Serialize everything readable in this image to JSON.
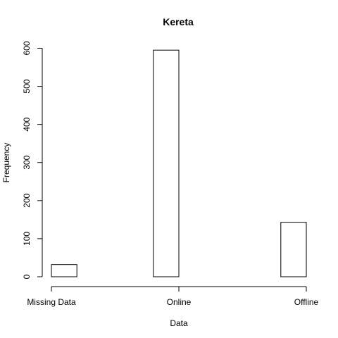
{
  "chart_data": {
    "type": "bar",
    "title": "Kereta",
    "xlabel": "Data",
    "ylabel": "Frequency",
    "categories": [
      "Missing Data",
      "Online",
      "Offline"
    ],
    "bins": [
      {
        "x_start": 0.0,
        "x_end": 0.2,
        "value": 32
      },
      {
        "x_start": 0.2,
        "x_end": 0.4,
        "value": 0
      },
      {
        "x_start": 0.4,
        "x_end": 0.6,
        "value": 0
      },
      {
        "x_start": 0.6,
        "x_end": 0.8,
        "value": 0
      },
      {
        "x_start": 0.8,
        "x_end": 1.0,
        "value": 595
      },
      {
        "x_start": 1.0,
        "x_end": 1.2,
        "value": 0
      },
      {
        "x_start": 1.2,
        "x_end": 1.4,
        "value": 0
      },
      {
        "x_start": 1.4,
        "x_end": 1.6,
        "value": 0
      },
      {
        "x_start": 1.6,
        "x_end": 1.8,
        "value": 0
      },
      {
        "x_start": 1.8,
        "x_end": 2.0,
        "value": 143
      }
    ],
    "xlim": [
      0,
      2
    ],
    "ylim": [
      0,
      600
    ],
    "yticks": [
      0,
      100,
      200,
      300,
      400,
      500,
      600
    ],
    "xticks": [
      0,
      1,
      2
    ],
    "grid": false,
    "legend": "none"
  }
}
